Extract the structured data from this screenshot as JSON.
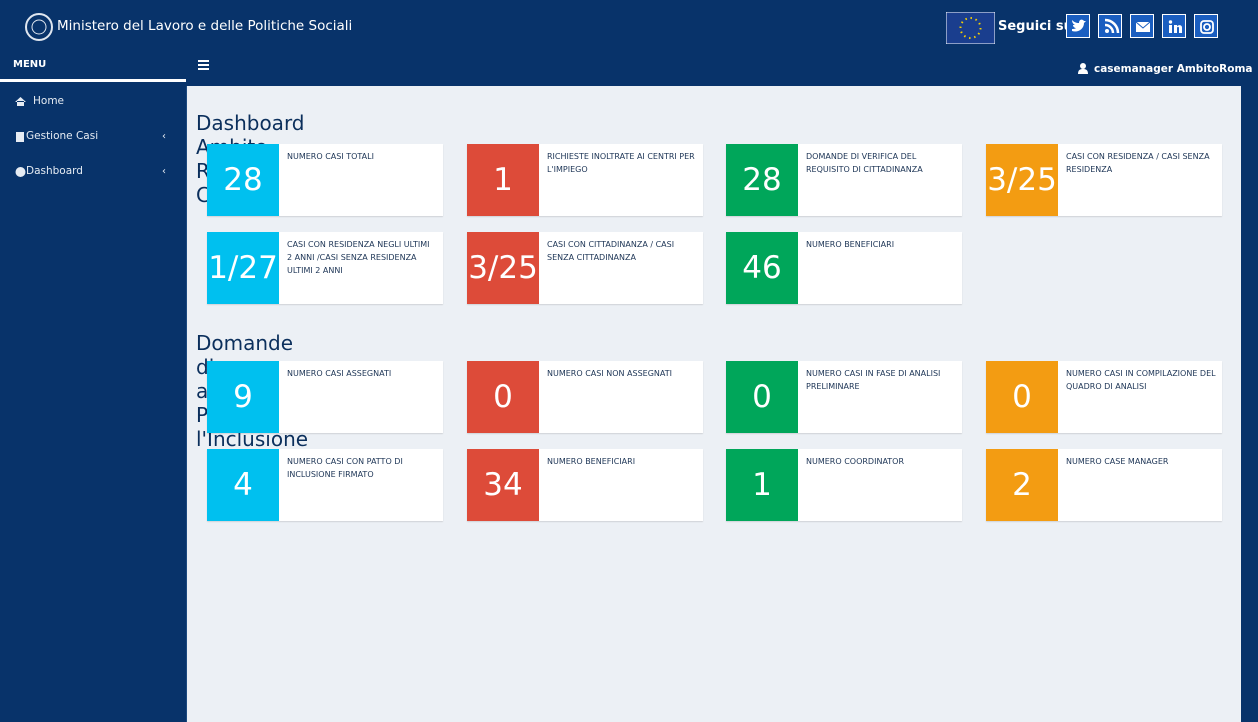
{
  "header": {
    "title": "Ministero del Lavoro e delle Politiche Sociali",
    "follow": "Seguici su:"
  },
  "navbar": {
    "menu": "MENU",
    "user": "casemanager AmbitoRoma"
  },
  "sidebar": {
    "items": [
      "Home",
      "Gestione Casi",
      "Dashboard"
    ]
  },
  "sections": [
    {
      "title": "Dashboard Ambito Roma Capitale",
      "boxes": [
        {
          "value": 28,
          "label": "NUMERO CASI TOTALI"
        },
        {
          "value": 1,
          "label": "RICHIESTE INOLTRATE AI CENTRI PER L'IMPIEGO"
        },
        {
          "value": 28,
          "label": "DOMANDE DI VERIFICA DEL REQUISITO DI CITTADINANZA"
        },
        {
          "value": "3/25",
          "label": "CASI CON RESIDENZA / CASI SENZA RESIDENZA"
        },
        {
          "value": "1/27",
          "label": "CASI CON RESIDENZA NEGLI ULTIMI 2 ANNI /CASI SENZA RESIDENZA ULTIMI 2 ANNI"
        },
        {
          "value": "3/25",
          "label": "CASI CON CITTADINANZA / CASI SENZA CITTADINANZA"
        },
        {
          "value": 46,
          "label": "NUMERO BENEFICIARI"
        }
      ]
    },
    {
      "title": "Domande di accesso al RdC con Patto per l'Inclusione",
      "boxes": [
        {
          "value": 9,
          "label": "NUMERO CASI ASSEGNATI"
        },
        {
          "value": 0,
          "label": "NUMERO CASI NON ASSEGNATI"
        },
        {
          "value": 0,
          "label": "NUMERO CASI IN FASE DI ANALISI PRELIMINARE"
        },
        {
          "value": 0,
          "label": "NUMERO CASI IN COMPILAZIONE DEL QUADRO DI ANALISI"
        },
        {
          "value": 4,
          "label": "NUMERO CASI CON PATTO DI INCLUSIONE FIRMATO"
        },
        {
          "value": 34,
          "label": "NUMERO BENEFICIARI"
        },
        {
          "value": 1,
          "label": "NUMERO COORDINATOR"
        },
        {
          "value": 2,
          "label": "NUMERO CASE MANAGER"
        }
      ]
    }
  ]
}
